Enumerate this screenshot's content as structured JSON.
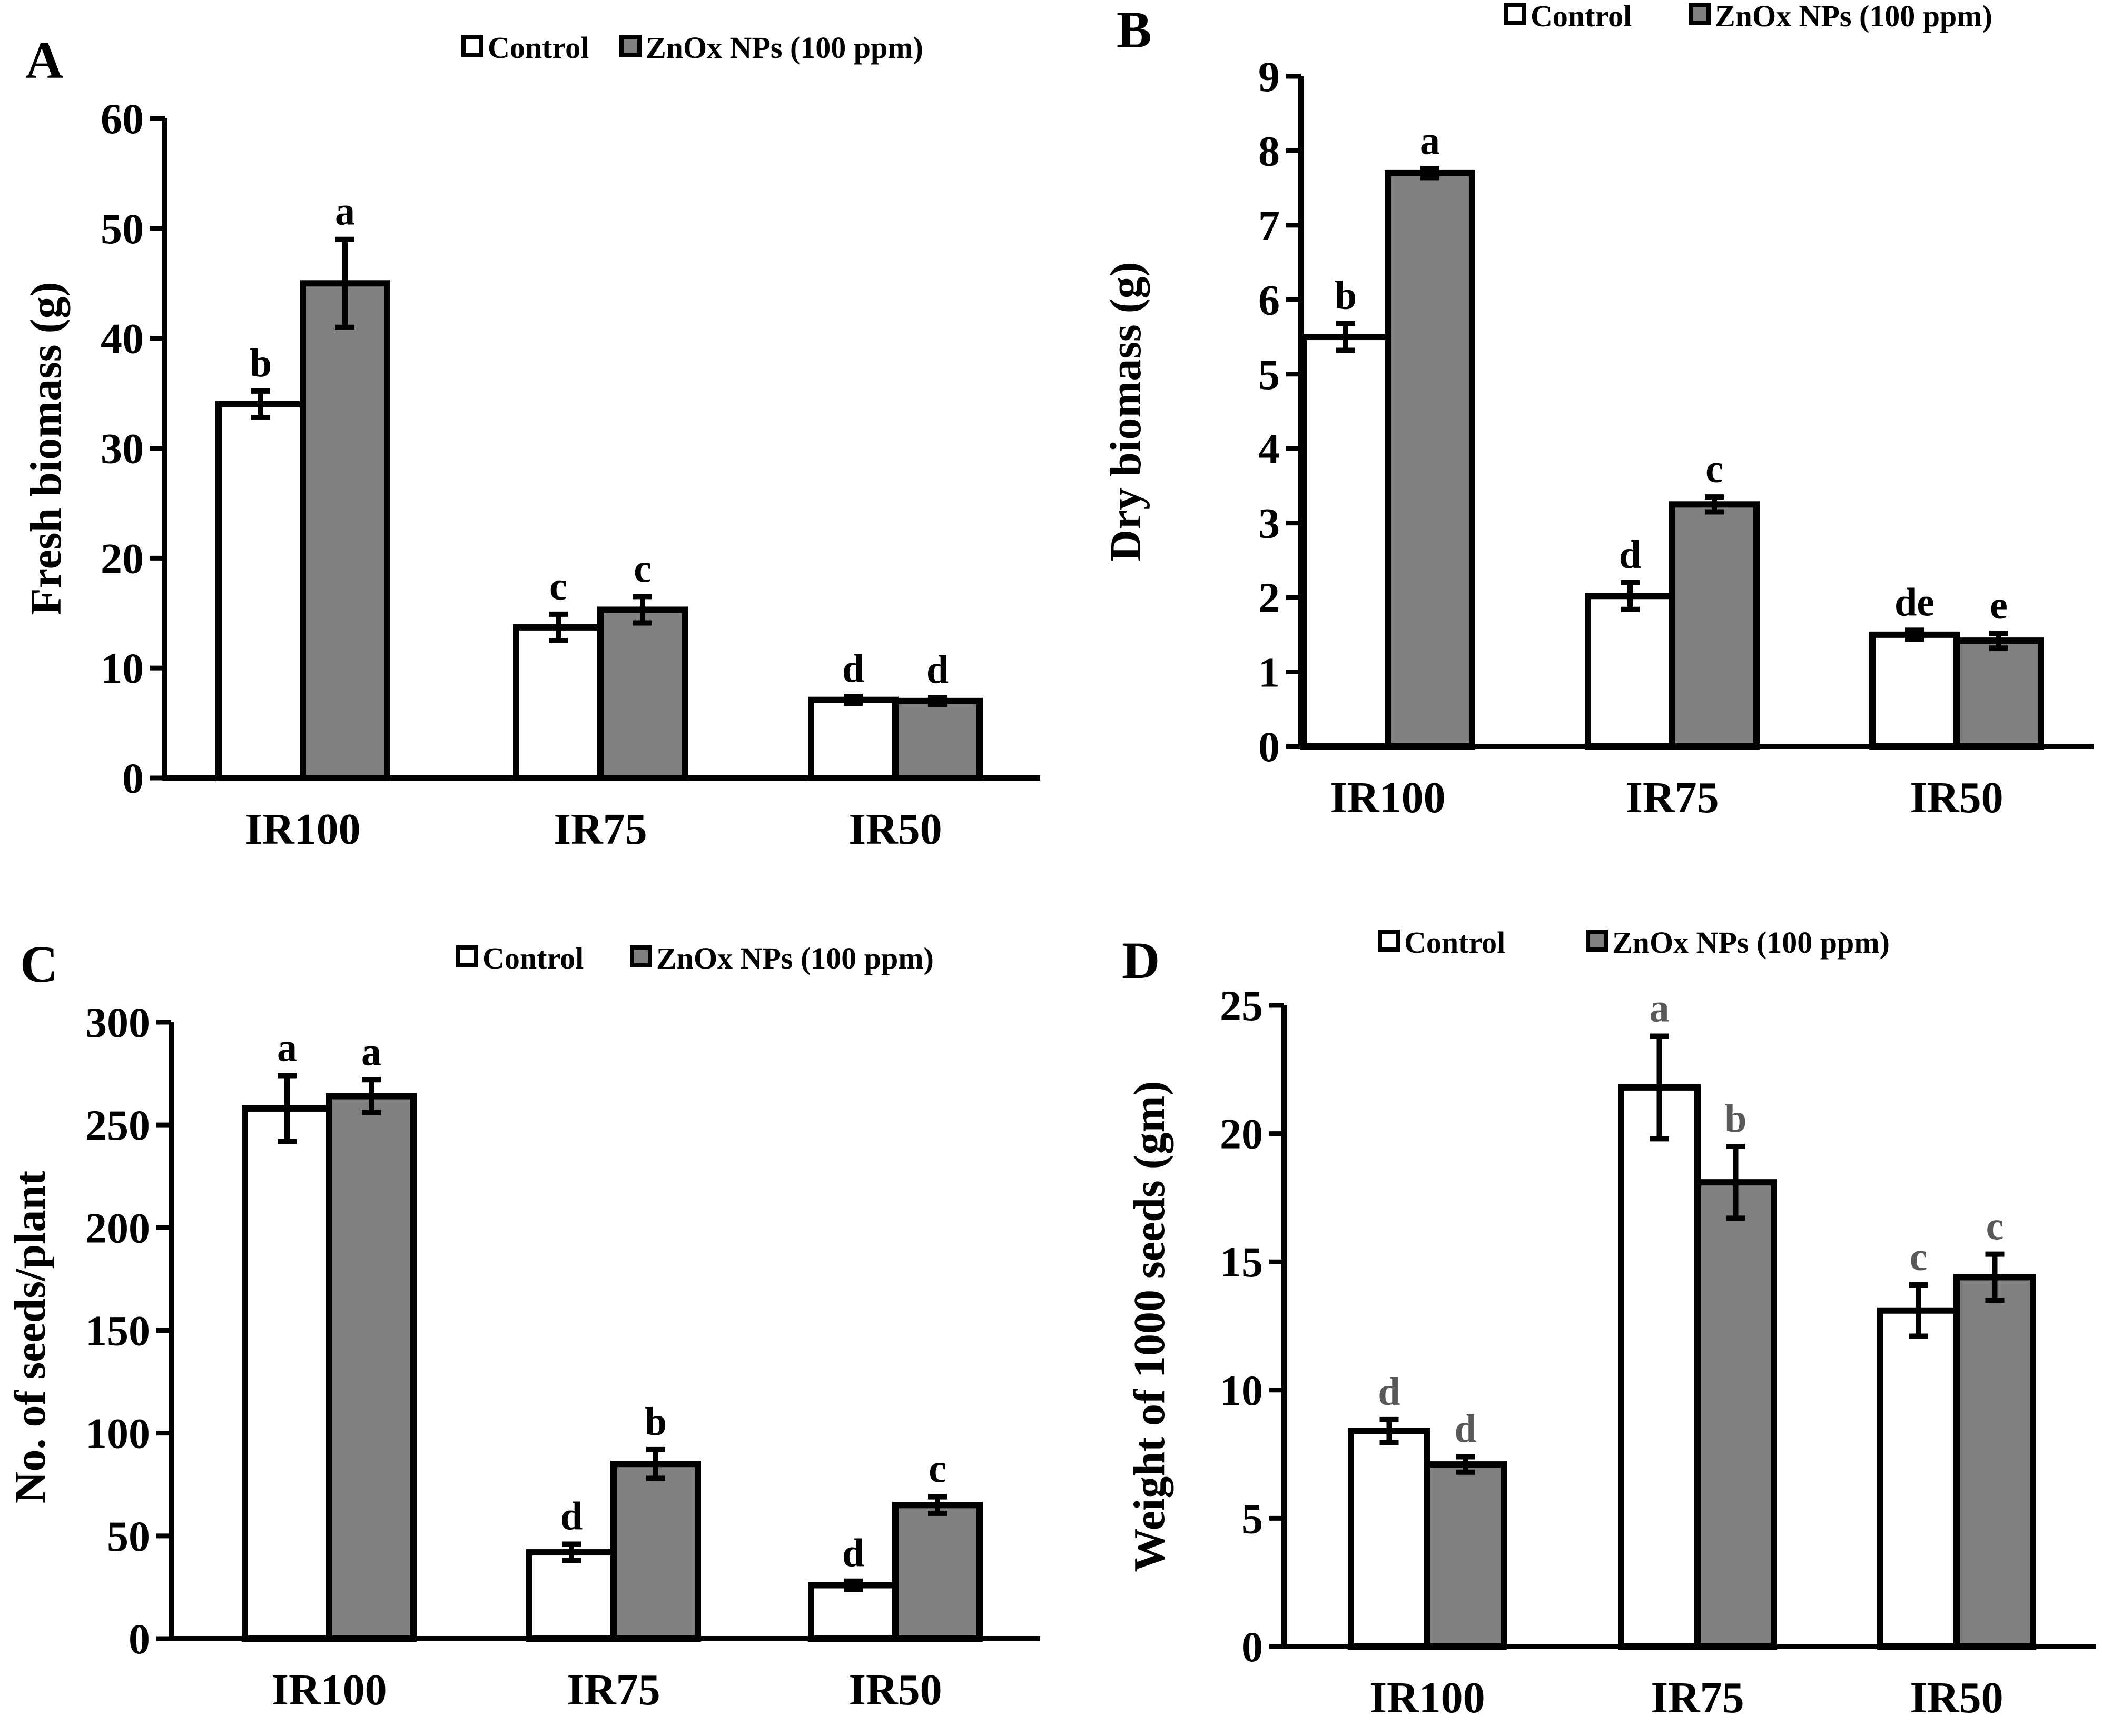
{
  "legend": {
    "control": "Control",
    "treated": "ZnOx NPs (100 ppm)"
  },
  "colors": {
    "control": "#ffffff",
    "treated": "#808080",
    "stroke": "#000000"
  },
  "chart_data": [
    {
      "panel": "A",
      "type": "bar",
      "categories": [
        "IR100",
        "IR75",
        "IR50"
      ],
      "ylabel": "Fresh biomass (g)",
      "ylim": [
        0,
        60
      ],
      "yticks": [
        0,
        10,
        20,
        30,
        40,
        50,
        60
      ],
      "series": [
        {
          "name": "Control",
          "values": [
            34.0,
            13.7,
            7.1
          ],
          "errors": [
            1.2,
            1.2,
            0.3
          ],
          "labels": [
            "b",
            "c",
            "d"
          ]
        },
        {
          "name": "ZnOx NPs (100 ppm)",
          "values": [
            45.0,
            15.3,
            7.0
          ],
          "errors": [
            4.0,
            1.2,
            0.3
          ],
          "labels": [
            "a",
            "c",
            "d"
          ]
        }
      ]
    },
    {
      "panel": "B",
      "type": "bar",
      "categories": [
        "IR100",
        "IR75",
        "IR50"
      ],
      "ylabel": "Dry biomass (g)",
      "ylim": [
        0,
        9
      ],
      "yticks": [
        0,
        1,
        2,
        3,
        4,
        5,
        6,
        7,
        8,
        9
      ],
      "series": [
        {
          "name": "Control",
          "values": [
            5.5,
            2.02,
            1.5
          ],
          "errors": [
            0.18,
            0.18,
            0.06
          ],
          "labels": [
            "b",
            "d",
            "de"
          ]
        },
        {
          "name": "ZnOx NPs (100 ppm)",
          "values": [
            7.7,
            3.25,
            1.42
          ],
          "errors": [
            0.06,
            0.1,
            0.1
          ],
          "labels": [
            "a",
            "c",
            "e"
          ]
        }
      ]
    },
    {
      "panel": "C",
      "type": "bar",
      "categories": [
        "IR100",
        "IR75",
        "IR50"
      ],
      "ylabel": "No. of seeds/plant",
      "ylim": [
        0,
        300
      ],
      "yticks": [
        0,
        50,
        100,
        150,
        200,
        250,
        300
      ],
      "series": [
        {
          "name": "Control",
          "values": [
            258,
            42,
            26
          ],
          "errors": [
            16,
            4,
            2
          ],
          "labels": [
            "a",
            "d",
            "d"
          ]
        },
        {
          "name": "ZnOx NPs (100 ppm)",
          "values": [
            264,
            85,
            65
          ],
          "errors": [
            8,
            7,
            4
          ],
          "labels": [
            "a",
            "b",
            "c"
          ]
        }
      ]
    },
    {
      "panel": "D",
      "type": "bar",
      "categories": [
        "IR100",
        "IR75",
        "IR50"
      ],
      "ylabel": "Weight of 1000 seeds (gm)",
      "ylim": [
        0,
        25
      ],
      "yticks": [
        0,
        5,
        10,
        15,
        20,
        25
      ],
      "series": [
        {
          "name": "Control",
          "values": [
            8.4,
            21.8,
            13.1
          ],
          "errors": [
            0.45,
            2.0,
            1.0
          ],
          "labels": [
            "d",
            "a",
            "c"
          ]
        },
        {
          "name": "ZnOx NPs (100 ppm)",
          "values": [
            7.1,
            18.1,
            14.4
          ],
          "errors": [
            0.3,
            1.4,
            0.9
          ],
          "labels": [
            "d",
            "b",
            "c"
          ]
        }
      ]
    }
  ]
}
